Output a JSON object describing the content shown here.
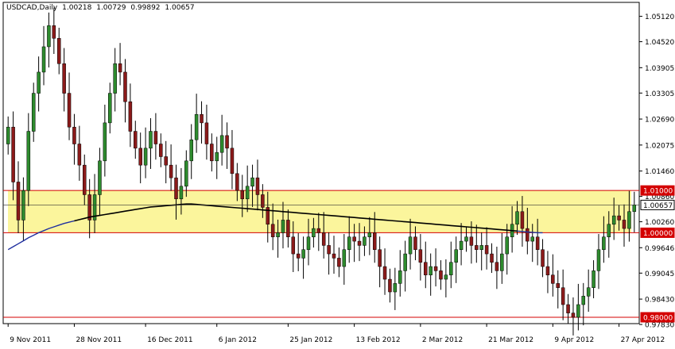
{
  "header": {
    "symbol": "USDCAD,Daily",
    "open": "1.00218",
    "high": "1.00729",
    "low": "0.99892",
    "close": "1.00657"
  },
  "colors": {
    "background": "#ffffff",
    "bull": "#2e8b2e",
    "bear": "#8b1a1a",
    "ma_slow": "#000000",
    "ma_fast": "#1f2f9f",
    "zone_fill": "#fbf59c",
    "zone_line": "#d40000",
    "current_price_line": "#333333"
  },
  "chart_data": {
    "type": "candlestick",
    "ylim": [
      0.9785,
      1.0545
    ],
    "y_ticks": [
      "1.05120",
      "1.04520",
      "1.03905",
      "1.03305",
      "1.02690",
      "1.02075",
      "1.01460",
      "1.00860",
      "1.00260",
      "0.99646",
      "0.99045",
      "0.98430",
      "0.97830"
    ],
    "x_ticks": [
      {
        "label": "9 Nov 2011",
        "index": 0
      },
      {
        "label": "28 Nov 2011",
        "index": 13
      },
      {
        "label": "16 Dec 2011",
        "index": 27
      },
      {
        "label": "6 Jan 2012",
        "index": 41
      },
      {
        "label": "25 Jan 2012",
        "index": 55
      },
      {
        "label": "13 Feb 2012",
        "index": 68
      },
      {
        "label": "2 Mar 2012",
        "index": 81
      },
      {
        "label": "21 Mar 2012",
        "index": 94
      },
      {
        "label": "9 Apr 2012",
        "index": 107
      },
      {
        "label": "27 Apr 2012",
        "index": 120
      }
    ],
    "price_labels": [
      {
        "value": 1.01,
        "label": "1.01000",
        "style": "zone"
      },
      {
        "value": 1.00657,
        "label": "1.00657",
        "style": "current"
      },
      {
        "value": 1.0,
        "label": "1.00000",
        "style": "zone"
      },
      {
        "value": 0.98,
        "label": "0.98000",
        "style": "zone"
      }
    ],
    "zone": {
      "top": 1.01,
      "bottom": 1.0
    },
    "extra_lines": [
      0.98
    ],
    "closes": [
      1.025,
      1.012,
      1.003,
      1.01,
      1.024,
      1.033,
      1.038,
      1.044,
      1.049,
      1.046,
      1.04,
      1.033,
      1.025,
      1.021,
      1.016,
      1.009,
      1.003,
      1.009,
      1.017,
      1.026,
      1.033,
      1.04,
      1.038,
      1.031,
      1.024,
      1.02,
      1.016,
      1.02,
      1.024,
      1.021,
      1.018,
      1.016,
      1.013,
      1.008,
      1.011,
      1.017,
      1.022,
      1.028,
      1.026,
      1.021,
      1.017,
      1.019,
      1.023,
      1.02,
      1.014,
      1.01,
      1.008,
      1.011,
      1.013,
      1.009,
      1.006,
      1.002,
      0.999,
      1.0,
      1.003,
      0.999,
      0.995,
      0.994,
      0.996,
      0.999,
      1.001,
      1.0,
      0.997,
      0.995,
      0.994,
      0.992,
      0.996,
      0.999,
      0.998,
      0.997,
      0.999,
      1.0,
      0.996,
      0.992,
      0.989,
      0.986,
      0.988,
      0.991,
      0.995,
      0.999,
      0.996,
      0.993,
      0.99,
      0.992,
      0.991,
      0.989,
      0.99,
      0.993,
      0.996,
      0.998,
      0.999,
      0.997,
      0.996,
      0.997,
      0.995,
      0.993,
      0.991,
      0.995,
      0.999,
      1.002,
      1.005,
      1.001,
      0.998,
      0.999,
      0.996,
      0.992,
      0.99,
      0.988,
      0.987,
      0.983,
      0.981,
      0.98,
      0.983,
      0.985,
      0.987,
      0.991,
      0.996,
      0.999,
      1.002,
      1.004,
      1.003,
      1.001,
      1.005,
      1.0066
    ],
    "series": [
      {
        "name": "slow moving average",
        "values": [
          0.996,
          0.9967,
          0.9974,
          0.9981,
          0.9988,
          0.9994,
          1.0,
          1.0005,
          1.001,
          1.0014,
          1.0018,
          1.0022,
          1.0025,
          1.0028,
          1.0031,
          1.0034,
          1.0037,
          1.0039,
          1.0041,
          1.0043,
          1.0045,
          1.0047,
          1.0049,
          1.0051,
          1.0053,
          1.0055,
          1.0057,
          1.0059,
          1.0061,
          1.0062,
          1.0063,
          1.0064,
          1.0065,
          1.0066,
          1.0067,
          1.0068,
          1.0068,
          1.0067,
          1.0066,
          1.0065,
          1.0064,
          1.0063,
          1.0062,
          1.0061,
          1.006,
          1.0059,
          1.0058,
          1.0057,
          1.0056,
          1.0055,
          1.0054,
          1.0053,
          1.0052,
          1.0051,
          1.005,
          1.0049,
          1.0048,
          1.0047,
          1.0046,
          1.0045,
          1.0044,
          1.0043,
          1.0042,
          1.0041,
          1.004,
          1.0039,
          1.0038,
          1.0037,
          1.0036,
          1.0035,
          1.0034,
          1.0033,
          1.0032,
          1.0031,
          1.003,
          1.0029,
          1.0028,
          1.0027,
          1.0026,
          1.0025,
          1.0024,
          1.0023,
          1.0022,
          1.0021,
          1.002,
          1.0019,
          1.0018,
          1.0017,
          1.0016,
          1.0015,
          1.0014,
          1.0013,
          1.0012,
          1.0011,
          1.001,
          1.0009,
          1.0008,
          1.0007,
          1.0006,
          1.0005,
          1.0004,
          1.0003,
          1.0002,
          1.0001,
          1.0,
          1.0
        ]
      }
    ]
  }
}
